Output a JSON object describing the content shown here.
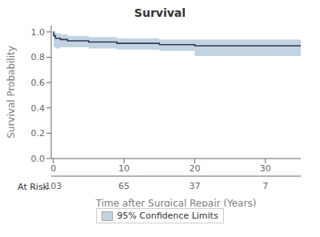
{
  "chart_data": {
    "type": "step",
    "title": "Survival",
    "x_label": "Time after Surgical Repair (Years)",
    "y_label": "Survival Probability",
    "x": [
      0,
      0.05,
      0.3,
      1.0,
      2.0,
      3.0,
      4.0,
      5.0,
      6.0,
      7.0,
      8.0,
      9.0,
      10.0,
      11.0,
      12.0,
      13.0,
      14.0,
      15.0,
      16.0,
      17.0,
      18.0,
      19.0,
      19.5,
      20.0,
      21.0,
      22.0,
      23.0,
      24.0,
      25.0,
      26.0,
      27.0,
      28.0,
      29.0,
      30.0,
      31.0,
      32.0,
      33.0,
      34.0,
      35.0
    ],
    "values": [
      1.0,
      0.97,
      0.95,
      0.94,
      0.93,
      0.93,
      0.93,
      0.92,
      0.92,
      0.92,
      0.92,
      0.91,
      0.91,
      0.91,
      0.91,
      0.91,
      0.91,
      0.9,
      0.9,
      0.9,
      0.9,
      0.9,
      0.9,
      0.89,
      0.89,
      0.89,
      0.89,
      0.89,
      0.89,
      0.89,
      0.89,
      0.89,
      0.89,
      0.89,
      0.89,
      0.89,
      0.89,
      0.89,
      0.89
    ],
    "color": "#2b3a52",
    "ci": {
      "name": "95% Confidence Limits",
      "color": "#aec6d8",
      "upper": [
        1.0,
        1.0,
        0.99,
        0.98,
        0.97,
        0.97,
        0.97,
        0.96,
        0.96,
        0.96,
        0.96,
        0.95,
        0.95,
        0.95,
        0.95,
        0.95,
        0.95,
        0.94,
        0.94,
        0.94,
        0.94,
        0.94,
        0.94,
        0.94,
        0.94,
        0.94,
        0.94,
        0.94,
        0.94,
        0.94,
        0.94,
        0.94,
        0.94,
        0.94,
        0.94,
        0.94,
        0.94,
        0.94,
        0.94
      ],
      "lower": [
        1.0,
        0.88,
        0.87,
        0.88,
        0.88,
        0.88,
        0.88,
        0.87,
        0.87,
        0.87,
        0.87,
        0.86,
        0.86,
        0.86,
        0.86,
        0.86,
        0.86,
        0.85,
        0.85,
        0.85,
        0.85,
        0.85,
        0.85,
        0.81,
        0.81,
        0.81,
        0.81,
        0.81,
        0.81,
        0.81,
        0.81,
        0.81,
        0.81,
        0.81,
        0.81,
        0.81,
        0.81,
        0.81,
        0.81
      ]
    },
    "at_risk": {
      "label": "At Risk",
      "x": [
        0,
        10,
        20,
        30
      ],
      "counts": [
        "103",
        "65",
        "37",
        "7"
      ]
    },
    "xlim": [
      -0.3,
      35
    ],
    "ylim": [
      0.0,
      1.05
    ],
    "xticks": [
      0,
      10,
      20,
      30
    ],
    "yticks": [
      {
        "value": 0.0,
        "label": "0.0"
      },
      {
        "value": 0.2,
        "label": "0.2"
      },
      {
        "value": 0.4,
        "label": "0.4"
      },
      {
        "value": 0.6,
        "label": "0.6"
      },
      {
        "value": 0.8,
        "label": "0.8"
      },
      {
        "value": 1.0,
        "label": "1.0"
      }
    ],
    "grid": false,
    "legend": "bottom"
  }
}
